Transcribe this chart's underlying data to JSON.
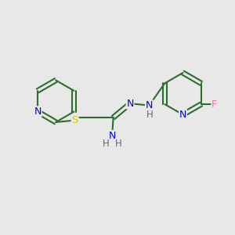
{
  "bg_color": "#e8e8e8",
  "bond_color": "#2d6e2d",
  "bond_width": 1.5,
  "atom_colors": {
    "N": "#0000ee",
    "S": "#cccc00",
    "F": "#ff69b4",
    "H": "#666666"
  },
  "figsize": [
    3.0,
    3.0
  ],
  "dpi": 100,
  "xlim": [
    0,
    10
  ],
  "ylim": [
    0,
    10
  ]
}
